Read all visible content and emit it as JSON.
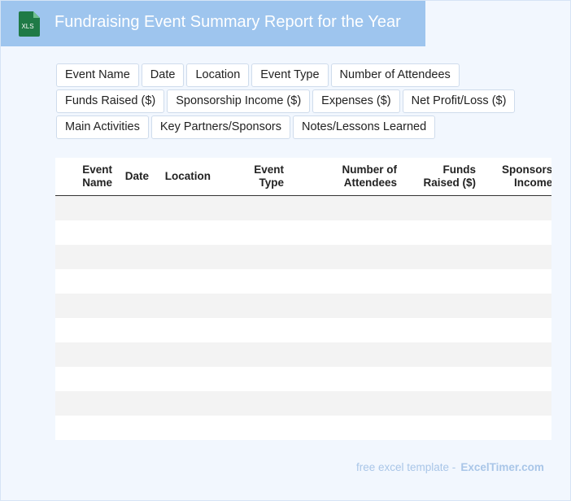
{
  "header": {
    "title": "Fundraising Event Summary Report for the Year",
    "icon_label": "XLS",
    "icon_color": "#1f7a46",
    "bar_color": "#9ec5ee"
  },
  "fields": {
    "row1": [
      "Event Name",
      "Date",
      "Location",
      "Event Type",
      "Number of Attendees"
    ],
    "row2": [
      "Funds Raised ($)",
      "Sponsorship Income ($)",
      "Expenses ($)",
      "Net Profit/Loss ($)"
    ],
    "row3": [
      "Main Activities",
      "Key Partners/Sponsors",
      "Notes/Lessons Learned"
    ]
  },
  "table": {
    "headers": [
      {
        "l1": "Event",
        "l2": "Name"
      },
      {
        "l1": "Date",
        "l2": ""
      },
      {
        "l1": "Location",
        "l2": ""
      },
      {
        "l1": "Event",
        "l2": "Type"
      },
      {
        "l1": "Number of",
        "l2": "Attendees"
      },
      {
        "l1": "Funds",
        "l2": "Raised ($)"
      },
      {
        "l1": "Sponsorship",
        "l2": "Income ($)"
      }
    ],
    "rows": 10
  },
  "footer": {
    "prefix": "free excel template -",
    "brand": "ExcelTimer.com"
  }
}
